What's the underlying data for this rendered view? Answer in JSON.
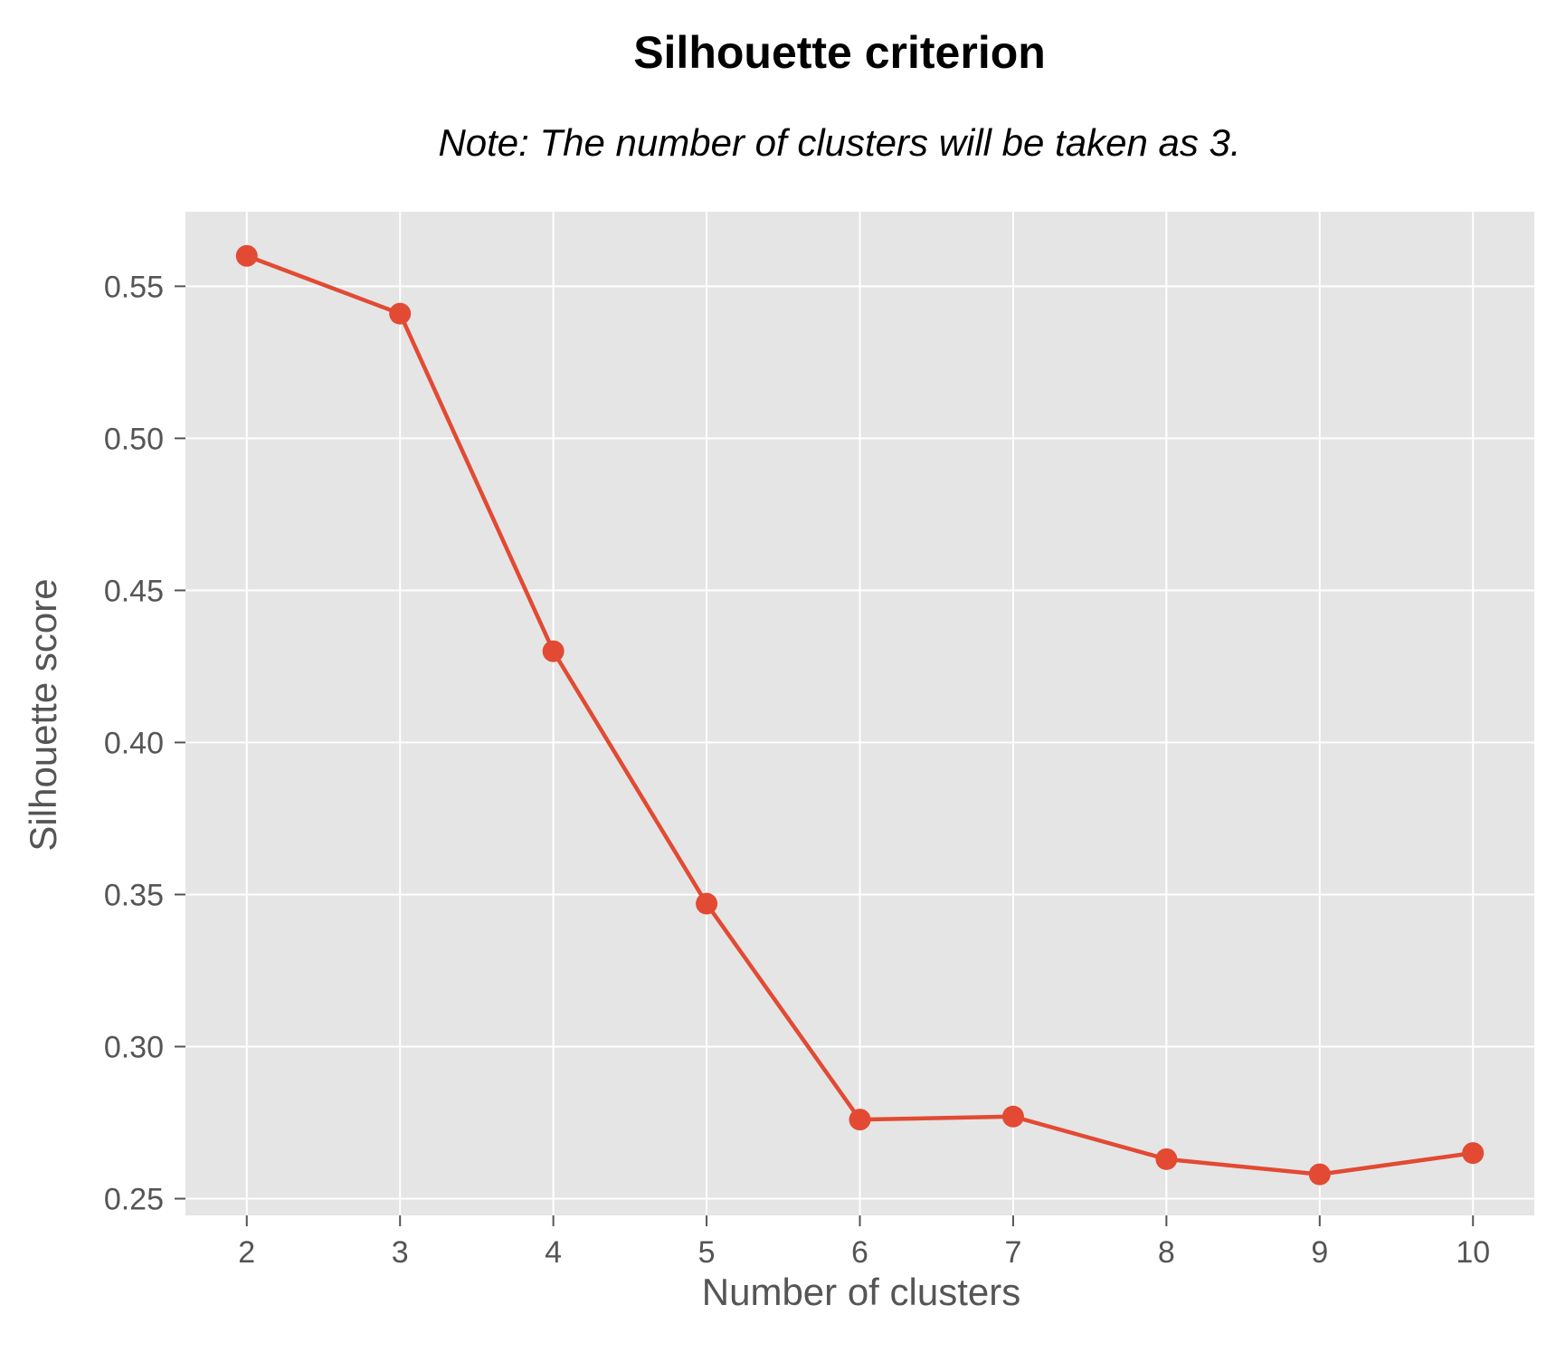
{
  "chart_data": {
    "type": "line",
    "title": "Silhouette criterion",
    "subtitle": "Note: The number of clusters will be taken as 3.",
    "xlabel": "Number of clusters",
    "ylabel": "Silhouette score",
    "x": [
      2,
      3,
      4,
      5,
      6,
      7,
      8,
      9,
      10
    ],
    "series": [
      {
        "values": [
          0.56,
          0.541,
          0.43,
          0.347,
          0.276,
          0.277,
          0.263,
          0.258,
          0.265
        ],
        "color": "#E24A33"
      }
    ],
    "xticks": [
      "2",
      "3",
      "4",
      "5",
      "6",
      "7",
      "8",
      "9",
      "10"
    ],
    "yticks": [
      "0.25",
      "0.30",
      "0.35",
      "0.40",
      "0.45",
      "0.50",
      "0.55"
    ],
    "xlim": [
      1.6,
      10.4
    ],
    "ylim": [
      0.2445,
      0.5745
    ],
    "grid": true,
    "colors": {
      "background": "#E5E5E5",
      "grid": "#FFFFFF",
      "line": "#E24A33",
      "tick_text": "#555555",
      "title": "#000000"
    }
  }
}
